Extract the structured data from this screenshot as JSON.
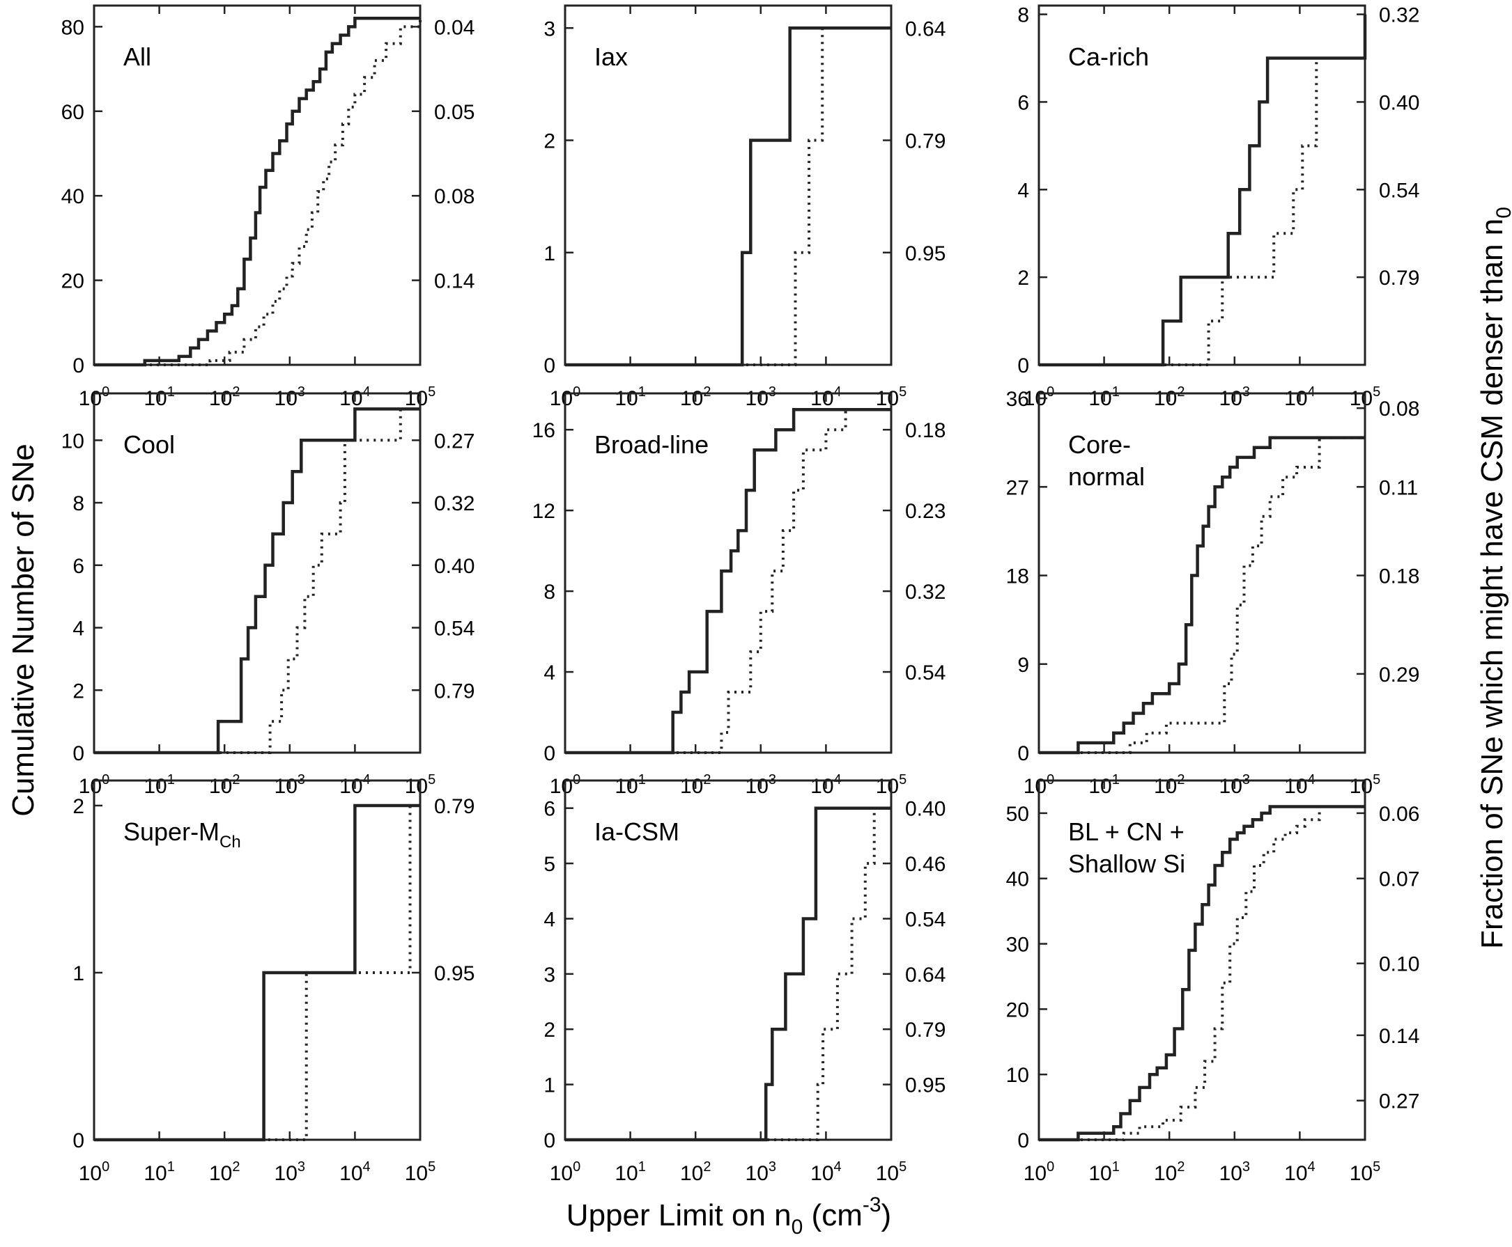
{
  "figure": {
    "ylabel_left": "Cumulative Number of SNe",
    "ylabel_right_prefix": "Fraction of SNe which might have CSM denser than n",
    "ylabel_right_sub": "0",
    "xlabel_prefix": "Upper Limit on n",
    "xlabel_sub": "0",
    "xlabel_unit_open": " (cm",
    "xlabel_unit_sup": "-3",
    "xlabel_unit_close": ")",
    "x_tick_base": "10",
    "x_tick_exponents": [
      "0",
      "1",
      "2",
      "3",
      "4",
      "5"
    ]
  },
  "colors": {
    "line": "#222222",
    "axis": "#222222",
    "background": "#ffffff"
  },
  "chart_data": [
    {
      "type": "line",
      "panel": "all",
      "title": "All",
      "xscale": "log",
      "xlim": [
        1,
        100000
      ],
      "ylim": [
        0,
        85
      ],
      "yticks": [
        "0",
        "20",
        "40",
        "60",
        "80"
      ],
      "ytick_values": [
        0,
        20,
        40,
        60,
        80
      ],
      "right_ticks": [
        "0.14",
        "0.08",
        "0.05",
        "0.04"
      ],
      "right_tick_values": [
        20,
        40,
        60,
        80
      ],
      "series": [
        {
          "name": "upper limit (solid)",
          "style": "solid",
          "x": [
            1,
            6,
            20,
            30,
            40,
            55,
            75,
            100,
            130,
            160,
            200,
            250,
            300,
            350,
            430,
            550,
            700,
            900,
            1100,
            1400,
            1800,
            2300,
            2900,
            3600,
            4500,
            6000,
            8000,
            10000,
            100000
          ],
          "y": [
            0,
            1,
            2,
            4,
            6,
            8,
            10,
            12,
            14,
            18,
            25,
            30,
            36,
            42,
            46,
            50,
            53,
            57,
            60,
            63,
            65,
            67,
            70,
            74,
            76,
            78,
            80,
            82,
            82
          ]
        },
        {
          "name": "dotted",
          "style": "dotted",
          "x": [
            1,
            60,
            120,
            200,
            300,
            400,
            550,
            700,
            900,
            1100,
            1400,
            1800,
            2200,
            2700,
            3300,
            4000,
            5000,
            6500,
            8000,
            10000,
            14000,
            20000,
            30000,
            50000,
            100000
          ],
          "y": [
            0,
            1,
            3,
            6,
            9,
            12,
            15,
            18,
            21,
            24,
            28,
            32,
            36,
            41,
            44,
            48,
            52,
            57,
            61,
            64,
            68,
            72,
            76,
            80,
            82
          ]
        }
      ]
    },
    {
      "type": "line",
      "panel": "iax",
      "title": "Iax",
      "xscale": "log",
      "xlim": [
        1,
        100000
      ],
      "ylim": [
        0,
        3.2
      ],
      "yticks": [
        "0",
        "1",
        "2",
        "3"
      ],
      "ytick_values": [
        0,
        1,
        2,
        3
      ],
      "right_ticks": [
        "0.95",
        "0.79",
        "0.64"
      ],
      "right_tick_values": [
        1,
        2,
        3
      ],
      "series": [
        {
          "name": "upper limit (solid)",
          "style": "solid",
          "x": [
            1,
            520,
            700,
            1300,
            2800,
            100000
          ],
          "y": [
            0,
            1,
            2,
            2,
            3,
            3
          ]
        },
        {
          "name": "dotted",
          "style": "dotted",
          "x": [
            1,
            3400,
            5500,
            8800,
            100000
          ],
          "y": [
            0,
            1,
            2,
            3,
            3
          ]
        }
      ]
    },
    {
      "type": "line",
      "panel": "ca-rich",
      "title": "Ca-rich",
      "xscale": "log",
      "xlim": [
        1,
        100000
      ],
      "ylim": [
        0,
        8.2
      ],
      "yticks": [
        "0",
        "2",
        "4",
        "6",
        "8"
      ],
      "ytick_values": [
        0,
        2,
        4,
        6,
        8
      ],
      "right_ticks": [
        "0.79",
        "0.54",
        "0.40",
        "0.32"
      ],
      "right_tick_values": [
        2,
        4,
        6,
        8
      ],
      "series": [
        {
          "name": "upper limit (solid)",
          "style": "solid",
          "x": [
            1,
            80,
            150,
            500,
            800,
            1200,
            1700,
            2400,
            3200,
            100000
          ],
          "y": [
            0,
            1,
            2,
            2,
            3,
            4,
            5,
            6,
            7,
            8
          ]
        },
        {
          "name": "dotted",
          "style": "dotted",
          "x": [
            1,
            400,
            650,
            1700,
            4000,
            8000,
            11000,
            18000,
            100000
          ],
          "y": [
            0,
            1,
            2,
            2,
            3,
            4,
            5,
            7,
            8
          ]
        }
      ]
    },
    {
      "type": "line",
      "panel": "cool",
      "title": "Cool",
      "xscale": "log",
      "xlim": [
        1,
        100000
      ],
      "ylim": [
        0,
        11.5
      ],
      "yticks": [
        "0",
        "2",
        "4",
        "6",
        "8",
        "10"
      ],
      "ytick_values": [
        0,
        2,
        4,
        6,
        8,
        10
      ],
      "right_ticks": [
        "0.79",
        "0.54",
        "0.40",
        "0.32",
        "0.27"
      ],
      "right_tick_values": [
        2,
        4,
        6,
        8,
        10
      ],
      "series": [
        {
          "name": "upper limit (solid)",
          "style": "solid",
          "x": [
            1,
            80,
            180,
            230,
            300,
            420,
            550,
            800,
            1100,
            1500,
            10000,
            100000
          ],
          "y": [
            0,
            1,
            3,
            4,
            5,
            6,
            7,
            8,
            9,
            10,
            11,
            11
          ]
        },
        {
          "name": "dotted",
          "style": "dotted",
          "x": [
            1,
            500,
            750,
            950,
            1300,
            1700,
            2300,
            3100,
            6000,
            7000,
            50000,
            100000
          ],
          "y": [
            0,
            1,
            2,
            3,
            4,
            5,
            6,
            7,
            8,
            10,
            11,
            11
          ]
        }
      ]
    },
    {
      "type": "line",
      "panel": "broad-line",
      "title": "Broad-line",
      "xscale": "log",
      "xlim": [
        1,
        100000
      ],
      "ylim": [
        0,
        17.8
      ],
      "yticks": [
        "0",
        "4",
        "8",
        "12",
        "16"
      ],
      "ytick_values": [
        0,
        4,
        8,
        12,
        16
      ],
      "right_ticks": [
        "0.54",
        "0.32",
        "0.23",
        "0.18"
      ],
      "right_tick_values": [
        4,
        8,
        12,
        16
      ],
      "series": [
        {
          "name": "upper limit (solid)",
          "style": "solid",
          "x": [
            1,
            45,
            60,
            80,
            150,
            250,
            350,
            450,
            600,
            800,
            1100,
            1700,
            3200,
            100000
          ],
          "y": [
            0,
            2,
            3,
            4,
            7,
            9,
            10,
            11,
            13,
            15,
            15,
            16,
            17,
            17
          ]
        },
        {
          "name": "dotted",
          "style": "dotted",
          "x": [
            1,
            250,
            320,
            700,
            1000,
            1500,
            2200,
            3200,
            4500,
            10000,
            20000,
            100000
          ],
          "y": [
            0,
            1,
            3,
            5,
            7,
            9,
            11,
            13,
            15,
            16,
            17,
            17
          ]
        }
      ]
    },
    {
      "type": "line",
      "panel": "core-normal",
      "title_line1": "Core-",
      "title_line2": "normal",
      "xscale": "log",
      "xlim": [
        1,
        100000
      ],
      "ylim": [
        0,
        36.5
      ],
      "yticks": [
        "0",
        "9",
        "18",
        "27",
        "36"
      ],
      "ytick_values": [
        0,
        9,
        18,
        27,
        36
      ],
      "right_ticks": [
        "0.29",
        "0.18",
        "0.11",
        "0.08"
      ],
      "right_tick_values": [
        8,
        18,
        27,
        35
      ],
      "series": [
        {
          "name": "upper limit (solid)",
          "style": "solid",
          "x": [
            1,
            4,
            14,
            20,
            28,
            40,
            55,
            70,
            100,
            140,
            180,
            220,
            270,
            330,
            400,
            500,
            650,
            850,
            1100,
            1400,
            2000,
            3500,
            100000
          ],
          "y": [
            0,
            1,
            2,
            3,
            4,
            5,
            6,
            6,
            7,
            9,
            13,
            18,
            21,
            23,
            25,
            27,
            28,
            29,
            30,
            30,
            31,
            32,
            32
          ]
        },
        {
          "name": "dotted",
          "style": "dotted",
          "x": [
            1,
            25,
            45,
            90,
            500,
            700,
            900,
            1100,
            1400,
            1900,
            2600,
            3500,
            5500,
            9000,
            20000,
            100000
          ],
          "y": [
            0,
            1,
            2,
            3,
            3,
            7,
            10,
            15,
            19,
            21,
            24,
            26,
            28,
            29,
            32,
            32
          ]
        }
      ]
    },
    {
      "type": "line",
      "panel": "super-mch",
      "title": "Super-M",
      "title_sub": "Ch",
      "xscale": "log",
      "xlim": [
        1,
        100000
      ],
      "ylim": [
        0,
        2.15
      ],
      "yticks": [
        "0",
        "1",
        "2"
      ],
      "ytick_values": [
        0,
        1,
        2
      ],
      "right_ticks": [
        "0.95",
        "0.79"
      ],
      "right_tick_values": [
        1,
        2
      ],
      "series": [
        {
          "name": "upper limit (solid)",
          "style": "solid",
          "x": [
            1,
            400,
            10000,
            100000
          ],
          "y": [
            0,
            1,
            2,
            2
          ]
        },
        {
          "name": "dotted",
          "style": "dotted",
          "x": [
            1,
            1800,
            70000,
            100000
          ],
          "y": [
            0,
            1,
            2,
            2
          ]
        }
      ]
    },
    {
      "type": "line",
      "panel": "ia-csm",
      "title": "Ia-CSM",
      "xscale": "log",
      "xlim": [
        1,
        100000
      ],
      "ylim": [
        0,
        6.5
      ],
      "yticks": [
        "0",
        "1",
        "2",
        "3",
        "4",
        "5",
        "6"
      ],
      "ytick_values": [
        0,
        1,
        2,
        3,
        4,
        5,
        6
      ],
      "right_ticks": [
        "0.95",
        "0.79",
        "0.64",
        "0.54",
        "0.46",
        "0.40"
      ],
      "right_tick_values": [
        1,
        2,
        3,
        4,
        5,
        6
      ],
      "series": [
        {
          "name": "upper limit (solid)",
          "style": "solid",
          "x": [
            1,
            1200,
            1500,
            2400,
            4500,
            7000,
            100000
          ],
          "y": [
            0,
            1,
            2,
            3,
            4,
            6,
            6
          ]
        },
        {
          "name": "dotted",
          "style": "dotted",
          "x": [
            1,
            7500,
            9000,
            15000,
            25000,
            40000,
            55000,
            100000
          ],
          "y": [
            0,
            1,
            2,
            3,
            4,
            5,
            6,
            6
          ]
        }
      ]
    },
    {
      "type": "line",
      "panel": "bl-cn-ss",
      "title_line1": "BL + CN +",
      "title_line2": "Shallow Si",
      "xscale": "log",
      "xlim": [
        1,
        100000
      ],
      "ylim": [
        0,
        55
      ],
      "yticks": [
        "0",
        "10",
        "20",
        "30",
        "40",
        "50"
      ],
      "ytick_values": [
        0,
        10,
        20,
        30,
        40,
        50
      ],
      "right_ticks": [
        "0.27",
        "0.14",
        "0.10",
        "0.07",
        "0.06"
      ],
      "right_tick_values": [
        6,
        16,
        27,
        40,
        50
      ],
      "series": [
        {
          "name": "upper limit (solid)",
          "style": "solid",
          "x": [
            1,
            4,
            14,
            18,
            25,
            35,
            50,
            65,
            90,
            120,
            160,
            200,
            250,
            320,
            400,
            500,
            650,
            850,
            1100,
            1400,
            1900,
            2600,
            3500,
            100000
          ],
          "y": [
            0,
            1,
            2,
            4,
            6,
            8,
            10,
            11,
            13,
            17,
            23,
            29,
            33,
            36,
            39,
            42,
            44,
            46,
            47,
            48,
            49,
            50,
            51,
            51
          ]
        },
        {
          "name": "dotted",
          "style": "dotted",
          "x": [
            1,
            20,
            35,
            80,
            150,
            250,
            350,
            500,
            650,
            850,
            1100,
            1500,
            2000,
            2800,
            4000,
            6000,
            9000,
            12000,
            20000,
            100000
          ],
          "y": [
            0,
            1,
            2,
            3,
            5,
            8,
            12,
            17,
            24,
            30,
            34,
            38,
            42,
            44,
            46,
            47,
            48,
            49,
            51,
            51
          ]
        }
      ]
    }
  ]
}
